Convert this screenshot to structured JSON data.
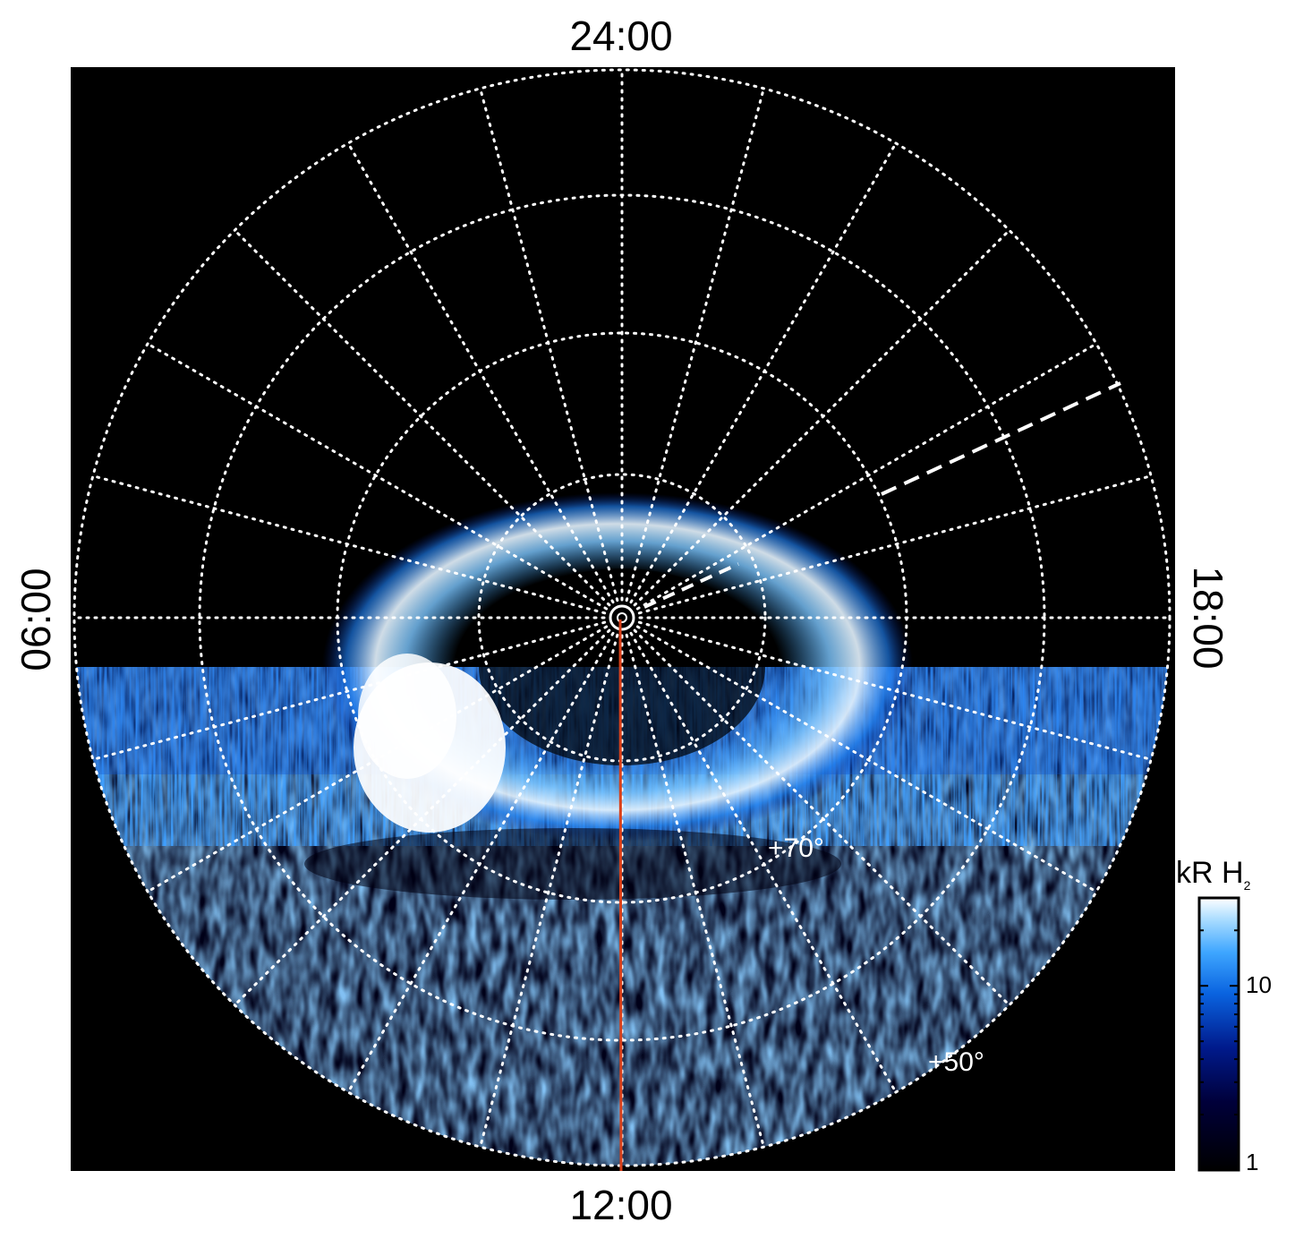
{
  "image": {
    "type": "polar auroral emission map",
    "colors": {
      "background": "#000000",
      "grid": "#ffffff",
      "meridian": "#d8401a",
      "colormap": [
        "#000000",
        "#00003a",
        "#001a8c",
        "#0a64e0",
        "#3ea6ff",
        "#a9dcff",
        "#ffffff"
      ]
    },
    "grid": {
      "style": "dotted",
      "meridian_spacing_hours": 1
    }
  },
  "time_labels": {
    "top": "24:00",
    "bottom": "12:00",
    "left": "06:00",
    "right": "18:00"
  },
  "latitude_labels": {
    "inner": "+70°",
    "outer": "+50°"
  },
  "colorbar": {
    "title_main": "kR H",
    "title_sub": "2",
    "scale": "log",
    "range": [
      1,
      30
    ],
    "tick_labels": [
      "10",
      "1"
    ]
  }
}
